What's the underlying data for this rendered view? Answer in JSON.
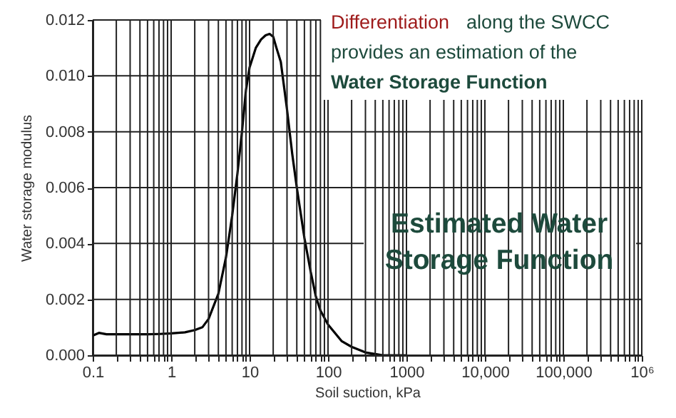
{
  "chart_data": {
    "type": "line",
    "xlabel": "Soil suction, kPa",
    "ylabel": "Water storage modulus",
    "annotations": [
      "Differentiation",
      "along the SWCC",
      "provides an estimation of the",
      "Water Storage Function",
      "Estimated Water Storage Function"
    ],
    "log": "x",
    "grid": true,
    "marker": "none",
    "line_style": "solid",
    "xlim": [
      0.1,
      1000000
    ],
    "ylim": [
      0,
      0.012
    ],
    "xticks": [
      {
        "value": 0.1,
        "label": "0.1"
      },
      {
        "value": 0.2,
        "label": null
      },
      {
        "value": 0.3,
        "label": null
      },
      {
        "value": 0.4,
        "label": null
      },
      {
        "value": 0.5,
        "label": null
      },
      {
        "value": 0.6,
        "label": null
      },
      {
        "value": 0.7,
        "label": null
      },
      {
        "value": 0.8,
        "label": null
      },
      {
        "value": 0.9,
        "label": null
      },
      {
        "value": 1,
        "label": "1"
      },
      {
        "value": 2,
        "label": null
      },
      {
        "value": 3,
        "label": null
      },
      {
        "value": 4,
        "label": null
      },
      {
        "value": 5,
        "label": null
      },
      {
        "value": 6,
        "label": null
      },
      {
        "value": 7,
        "label": null
      },
      {
        "value": 8,
        "label": null
      },
      {
        "value": 9,
        "label": null
      },
      {
        "value": 10,
        "label": "10"
      },
      {
        "value": 20,
        "label": null
      },
      {
        "value": 30,
        "label": null
      },
      {
        "value": 40,
        "label": null
      },
      {
        "value": 50,
        "label": null
      },
      {
        "value": 60,
        "label": null
      },
      {
        "value": 70,
        "label": null
      },
      {
        "value": 80,
        "label": null
      },
      {
        "value": 90,
        "label": null
      },
      {
        "value": 100,
        "label": "100"
      },
      {
        "value": 200,
        "label": null
      },
      {
        "value": 300,
        "label": null
      },
      {
        "value": 400,
        "label": null
      },
      {
        "value": 500,
        "label": null
      },
      {
        "value": 600,
        "label": null
      },
      {
        "value": 700,
        "label": null
      },
      {
        "value": 800,
        "label": null
      },
      {
        "value": 900,
        "label": null
      },
      {
        "value": 1000,
        "label": "1000"
      },
      {
        "value": 2000,
        "label": null
      },
      {
        "value": 3000,
        "label": null
      },
      {
        "value": 4000,
        "label": null
      },
      {
        "value": 5000,
        "label": null
      },
      {
        "value": 6000,
        "label": null
      },
      {
        "value": 7000,
        "label": null
      },
      {
        "value": 8000,
        "label": null
      },
      {
        "value": 9000,
        "label": null
      },
      {
        "value": 10000,
        "label": "10,000"
      },
      {
        "value": 20000,
        "label": null
      },
      {
        "value": 30000,
        "label": null
      },
      {
        "value": 40000,
        "label": null
      },
      {
        "value": 50000,
        "label": null
      },
      {
        "value": 60000,
        "label": null
      },
      {
        "value": 70000,
        "label": null
      },
      {
        "value": 80000,
        "label": null
      },
      {
        "value": 90000,
        "label": null
      },
      {
        "value": 100000,
        "label": "100,000"
      },
      {
        "value": 200000,
        "label": null
      },
      {
        "value": 300000,
        "label": null
      },
      {
        "value": 400000,
        "label": null
      },
      {
        "value": 500000,
        "label": null
      },
      {
        "value": 600000,
        "label": null
      },
      {
        "value": 700000,
        "label": null
      },
      {
        "value": 800000,
        "label": null
      },
      {
        "value": 900000,
        "label": null
      },
      {
        "value": 1000000,
        "label": "10⁶"
      }
    ],
    "yticks": [
      {
        "value": 0,
        "label": "0.000"
      },
      {
        "value": 0.002,
        "label": "0.002"
      },
      {
        "value": 0.004,
        "label": "0.004"
      },
      {
        "value": 0.006,
        "label": "0.006"
      },
      {
        "value": 0.008,
        "label": "0.008"
      },
      {
        "value": 0.01,
        "label": "0.010"
      },
      {
        "value": 0.012,
        "label": "0.012"
      }
    ],
    "series": [
      {
        "color": "#000000",
        "x": [
          0.1,
          0.12,
          0.15,
          0.2,
          0.3,
          0.5,
          0.7,
          1,
          1.5,
          2,
          2.5,
          3,
          4,
          5,
          6,
          7,
          8,
          9,
          10,
          12,
          14,
          16,
          18,
          20,
          22,
          25,
          30,
          35,
          40,
          50,
          60,
          70,
          80,
          100,
          150,
          200,
          300,
          500,
          700,
          1000
        ],
        "values": [
          0.0007,
          0.0008,
          0.00075,
          0.00075,
          0.00075,
          0.00075,
          0.00076,
          0.00078,
          0.00082,
          0.0009,
          0.001,
          0.0013,
          0.0022,
          0.0035,
          0.005,
          0.0065,
          0.008,
          0.0095,
          0.0103,
          0.011,
          0.0113,
          0.01145,
          0.0115,
          0.0114,
          0.011,
          0.0105,
          0.0088,
          0.0072,
          0.006,
          0.0042,
          0.003,
          0.0021,
          0.0016,
          0.0011,
          0.0005,
          0.0003,
          0.0001,
          0,
          0,
          0
        ]
      }
    ]
  }
}
